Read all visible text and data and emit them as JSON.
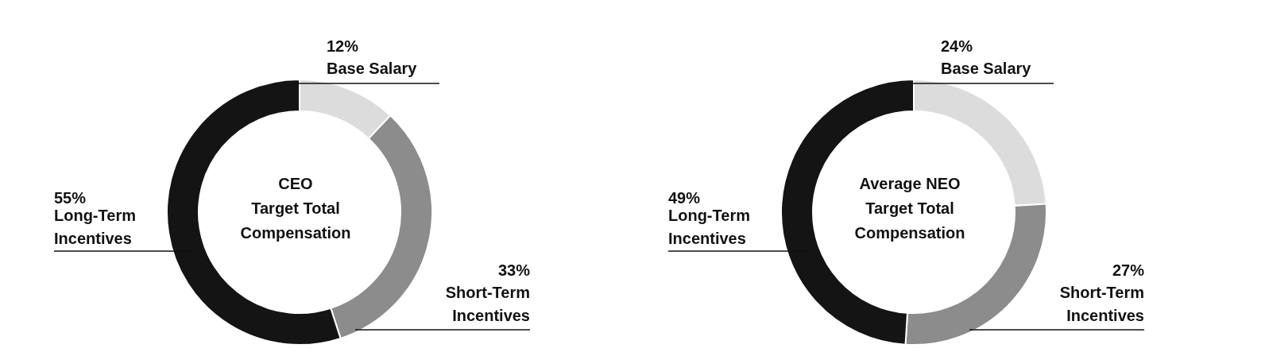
{
  "chart_data": [
    {
      "type": "donut",
      "title": "CEO\nTarget Total\nCompensation",
      "categories": [
        "Base Salary",
        "Short-Term Incentives",
        "Long-Term Incentives"
      ],
      "values": [
        12,
        33,
        55
      ],
      "value_labels": [
        "12%",
        "33%",
        "55%"
      ],
      "colors": [
        "#dcdcdc",
        "#8c8c8c",
        "#141414"
      ],
      "legend": false
    },
    {
      "type": "donut",
      "title": "Average NEO\nTarget Total\nCompensation",
      "categories": [
        "Base Salary",
        "Short-Term Incentives",
        "Long-Term Incentives"
      ],
      "values": [
        24,
        27,
        49
      ],
      "value_labels": [
        "24%",
        "27%",
        "49%"
      ],
      "colors": [
        "#dcdcdc",
        "#8c8c8c",
        "#141414"
      ],
      "legend": false
    }
  ]
}
